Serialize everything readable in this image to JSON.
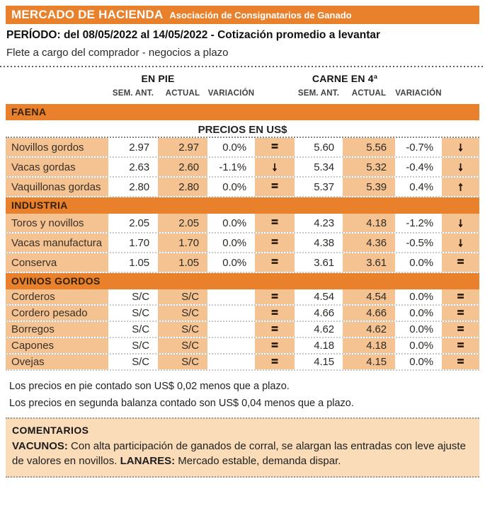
{
  "header": {
    "title": "MERCADO DE HACIENDA",
    "subtitle": "Asociación de Consignatarios de Ganado",
    "period_label": "PERÍODO: del 08/05/2022 al 14/05/2022 - Cotización promedio a levantar",
    "terms": "Flete a cargo del comprador - negocios a plazo"
  },
  "table": {
    "group_headers": [
      "EN PIE",
      "CARNE EN 4ª"
    ],
    "col_headers": [
      "SEM. ANT.",
      "ACTUAL",
      "VARIACIÓN"
    ],
    "price_unit_label": "PRECIOS EN US$",
    "sections": [
      {
        "name": "FAENA",
        "price_header": true,
        "rows": [
          {
            "label": "Novillos gordos",
            "pie_ant": "2.97",
            "pie_act": "2.97",
            "pie_var": "0.0%",
            "pie_trend": "=",
            "carne_ant": "5.60",
            "carne_act": "5.56",
            "carne_var": "-0.7%",
            "carne_trend": "↓"
          },
          {
            "label": "Vacas gordas",
            "pie_ant": "2.63",
            "pie_act": "2.60",
            "pie_var": "-1.1%",
            "pie_trend": "↓",
            "carne_ant": "5.34",
            "carne_act": "5.32",
            "carne_var": "-0.4%",
            "carne_trend": "↓"
          },
          {
            "label": "Vaquillonas gordas",
            "pie_ant": "2.80",
            "pie_act": "2.80",
            "pie_var": "0.0%",
            "pie_trend": "=",
            "carne_ant": "5.37",
            "carne_act": "5.39",
            "carne_var": "0.4%",
            "carne_trend": "↑"
          }
        ]
      },
      {
        "name": "INDUSTRIA",
        "price_header": false,
        "rows": [
          {
            "label": "Toros y novillos",
            "pie_ant": "2.05",
            "pie_act": "2.05",
            "pie_var": "0.0%",
            "pie_trend": "=",
            "carne_ant": "4.23",
            "carne_act": "4.18",
            "carne_var": "-1.2%",
            "carne_trend": "↓"
          },
          {
            "label": "Vacas manufactura",
            "pie_ant": "1.70",
            "pie_act": "1.70",
            "pie_var": "0.0%",
            "pie_trend": "=",
            "carne_ant": "4.38",
            "carne_act": "4.36",
            "carne_var": "-0.5%",
            "carne_trend": "↓"
          },
          {
            "label": "Conserva",
            "pie_ant": "1.05",
            "pie_act": "1.05",
            "pie_var": "0.0%",
            "pie_trend": "=",
            "carne_ant": "3.61",
            "carne_act": "3.61",
            "carne_var": "0.0%",
            "carne_trend": "="
          }
        ]
      },
      {
        "name": "OVINOS GORDOS",
        "price_header": false,
        "tight": true,
        "rows": [
          {
            "label": "Corderos",
            "pie_ant": "S/C",
            "pie_act": "S/C",
            "pie_var": "",
            "pie_trend": "=",
            "carne_ant": "4.54",
            "carne_act": "4.54",
            "carne_var": "0.0%",
            "carne_trend": "="
          },
          {
            "label": "Cordero pesado",
            "pie_ant": "S/C",
            "pie_act": "S/C",
            "pie_var": "",
            "pie_trend": "=",
            "carne_ant": "4.66",
            "carne_act": "4.66",
            "carne_var": "0.0%",
            "carne_trend": "="
          },
          {
            "label": "Borregos",
            "pie_ant": "S/C",
            "pie_act": "S/C",
            "pie_var": "",
            "pie_trend": "=",
            "carne_ant": "4.62",
            "carne_act": "4.62",
            "carne_var": "0.0%",
            "carne_trend": "="
          },
          {
            "label": "Capones",
            "pie_ant": "S/C",
            "pie_act": "S/C",
            "pie_var": "",
            "pie_trend": "=",
            "carne_ant": "4.18",
            "carne_act": "4.18",
            "carne_var": "0.0%",
            "carne_trend": "="
          },
          {
            "label": "Ovejas",
            "pie_ant": "S/C",
            "pie_act": "S/C",
            "pie_var": "",
            "pie_trend": "=",
            "carne_ant": "4.15",
            "carne_act": "4.15",
            "carne_var": "0.0%",
            "carne_trend": "="
          }
        ]
      }
    ]
  },
  "footnotes": [
    "Los precios en pie contado son US$ 0,02 menos que a plazo.",
    "Los precios en segunda balanza contado son US$ 0,04 menos que a plazo."
  ],
  "comments": {
    "title": "COMENTARIOS",
    "vacunos_label": "VACUNOS:",
    "vacunos_text": " Con alta participación de ganados de corral, se alargan las entradas con leve ajuste de valores en novillos. ",
    "lanares_label": "LANARES:",
    "lanares_text": " Mercado estable, demanda dispar."
  },
  "colors": {
    "band_orange": "#E8802C",
    "cell_orange": "#F4C391",
    "comments_bg": "#FADCB8",
    "band_text": "#33200A",
    "title_text": "#FFFFFF"
  }
}
